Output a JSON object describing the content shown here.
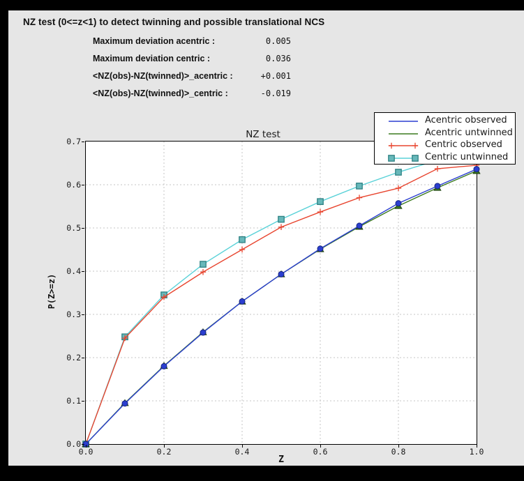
{
  "header": {
    "title": "NZ test (0<=z<1) to detect twinning and possible translational NCS"
  },
  "stats": [
    {
      "label": "Maximum deviation acentric :",
      "value": "0.005"
    },
    {
      "label": "Maximum deviation centric :",
      "value": "0.036"
    },
    {
      "label": "<NZ(obs)-NZ(twinned)>_acentric :",
      "value": "+0.001"
    },
    {
      "label": "<NZ(obs)-NZ(twinned)>_centric :",
      "value": "-0.019"
    }
  ],
  "chart_data": {
    "type": "line",
    "title": "NZ test",
    "xlabel": "Z",
    "ylabel": "P(Z>=z)",
    "xlim": [
      0.0,
      1.0
    ],
    "ylim": [
      0.0,
      0.7
    ],
    "xtick_labels": [
      "0.0",
      "0.2",
      "0.4",
      "0.6",
      "0.8",
      "1.0"
    ],
    "ytick_labels": [
      "0.0",
      "0.1",
      "0.2",
      "0.3",
      "0.4",
      "0.5",
      "0.6",
      "0.7"
    ],
    "grid": true,
    "grid_color": "#c4c4c4",
    "legend_position": "upper right",
    "x": [
      0.0,
      0.1,
      0.2,
      0.3,
      0.4,
      0.5,
      0.6,
      0.7,
      0.8,
      0.9,
      1.0
    ],
    "series": [
      {
        "name": "Acentric observed",
        "color": "#2b3fd0",
        "marker": "circle",
        "marker_fill": "#2b3fd0",
        "marker_edge": "#17257f",
        "legend_marker": "none",
        "values": [
          0.0,
          0.094,
          0.18,
          0.258,
          0.33,
          0.393,
          0.452,
          0.505,
          0.557,
          0.597,
          0.636
        ]
      },
      {
        "name": "Acentric untwinned",
        "color": "#3c7a1f",
        "marker": "triangle",
        "marker_fill": "#3c7a1f",
        "marker_edge": "#1c3f0e",
        "legend_marker": "none",
        "values": [
          0.0,
          0.095,
          0.181,
          0.259,
          0.33,
          0.393,
          0.451,
          0.503,
          0.551,
          0.593,
          0.632
        ]
      },
      {
        "name": "Centric observed",
        "color": "#e8452f",
        "marker": "plus",
        "marker_fill": "#e8452f",
        "marker_edge": "#e8452f",
        "legend_marker": "plus",
        "values": [
          0.0,
          0.245,
          0.34,
          0.398,
          0.45,
          0.502,
          0.537,
          0.57,
          0.592,
          0.637,
          0.645
        ]
      },
      {
        "name": "Centric untwinned",
        "color": "#5ad2d8",
        "marker": "square",
        "marker_fill": "#68b8ba",
        "marker_edge": "#2e8183",
        "legend_marker": "square",
        "values": [
          0.0,
          0.248,
          0.345,
          0.416,
          0.473,
          0.52,
          0.561,
          0.597,
          0.629,
          0.657,
          0.683
        ]
      }
    ]
  }
}
